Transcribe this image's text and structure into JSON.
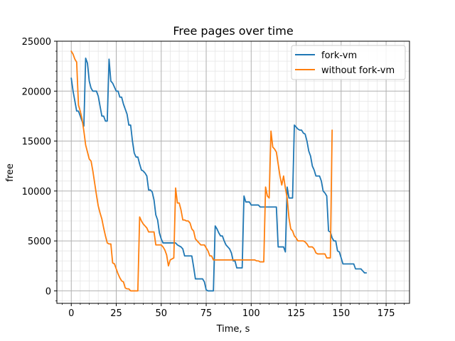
{
  "chart_data": {
    "type": "line",
    "title": "Free pages over time",
    "xlabel": "Time, s",
    "ylabel": "free",
    "xlim": [
      -8,
      188
    ],
    "ylim": [
      -1250,
      25000
    ],
    "x_ticks": [
      0,
      25,
      50,
      75,
      100,
      125,
      150,
      175
    ],
    "y_ticks": [
      0,
      5000,
      10000,
      15000,
      20000,
      25000
    ],
    "x_minor_step": 5,
    "y_minor_step": 1000,
    "grid": "major and minor",
    "legend_position": "top-right",
    "series": [
      {
        "name": "fork-vm",
        "color": "#1f77b4",
        "points": [
          [
            0,
            21300
          ],
          [
            1,
            20000
          ],
          [
            2,
            19000
          ],
          [
            3,
            18000
          ],
          [
            4,
            18000
          ],
          [
            5,
            17500
          ],
          [
            6,
            17000
          ],
          [
            7,
            16500
          ],
          [
            8,
            23300
          ],
          [
            9,
            22800
          ],
          [
            10,
            21000
          ],
          [
            11,
            20300
          ],
          [
            12,
            20000
          ],
          [
            13,
            20000
          ],
          [
            14,
            20000
          ],
          [
            15,
            19500
          ],
          [
            16,
            18500
          ],
          [
            17,
            17500
          ],
          [
            18,
            17500
          ],
          [
            19,
            17000
          ],
          [
            20,
            17000
          ],
          [
            21,
            23200
          ],
          [
            22,
            21000
          ],
          [
            23,
            20800
          ],
          [
            24,
            20400
          ],
          [
            25,
            20000
          ],
          [
            26,
            20000
          ],
          [
            27,
            19400
          ],
          [
            28,
            19400
          ],
          [
            29,
            18700
          ],
          [
            30,
            18200
          ],
          [
            31,
            17700
          ],
          [
            32,
            16600
          ],
          [
            33,
            16600
          ],
          [
            34,
            15000
          ],
          [
            35,
            13800
          ],
          [
            36,
            13400
          ],
          [
            37,
            13400
          ],
          [
            38,
            12700
          ],
          [
            39,
            12100
          ],
          [
            40,
            12000
          ],
          [
            41,
            11800
          ],
          [
            42,
            11500
          ],
          [
            43,
            10100
          ],
          [
            44,
            10100
          ],
          [
            45,
            9900
          ],
          [
            46,
            9100
          ],
          [
            47,
            7600
          ],
          [
            48,
            7100
          ],
          [
            49,
            5800
          ],
          [
            50,
            5200
          ],
          [
            51,
            4800
          ],
          [
            52,
            4800
          ],
          [
            53,
            4800
          ],
          [
            54,
            4800
          ],
          [
            55,
            4800
          ],
          [
            56,
            4800
          ],
          [
            57,
            4800
          ],
          [
            58,
            4800
          ],
          [
            59,
            4600
          ],
          [
            60,
            4500
          ],
          [
            61,
            4400
          ],
          [
            62,
            4200
          ],
          [
            63,
            3500
          ],
          [
            64,
            3500
          ],
          [
            65,
            3500
          ],
          [
            66,
            3500
          ],
          [
            67,
            3500
          ],
          [
            68,
            2400
          ],
          [
            69,
            1200
          ],
          [
            70,
            1200
          ],
          [
            71,
            1200
          ],
          [
            72,
            1200
          ],
          [
            73,
            1200
          ],
          [
            74,
            900
          ],
          [
            75,
            100
          ],
          [
            76,
            0
          ],
          [
            77,
            0
          ],
          [
            78,
            0
          ],
          [
            79,
            0
          ],
          [
            80,
            6500
          ],
          [
            81,
            6200
          ],
          [
            82,
            5800
          ],
          [
            83,
            5500
          ],
          [
            84,
            5500
          ],
          [
            85,
            5000
          ],
          [
            86,
            4600
          ],
          [
            87,
            4400
          ],
          [
            88,
            4200
          ],
          [
            89,
            3800
          ],
          [
            90,
            3000
          ],
          [
            91,
            3000
          ],
          [
            92,
            2300
          ],
          [
            93,
            2300
          ],
          [
            94,
            2300
          ],
          [
            95,
            2300
          ],
          [
            96,
            9500
          ],
          [
            97,
            8900
          ],
          [
            98,
            8900
          ],
          [
            99,
            8900
          ],
          [
            100,
            8600
          ],
          [
            101,
            8600
          ],
          [
            102,
            8600
          ],
          [
            103,
            8600
          ],
          [
            104,
            8600
          ],
          [
            105,
            8400
          ],
          [
            106,
            8400
          ],
          [
            107,
            8400
          ],
          [
            108,
            8400
          ],
          [
            109,
            8400
          ],
          [
            110,
            8400
          ],
          [
            111,
            8400
          ],
          [
            112,
            8400
          ],
          [
            113,
            8400
          ],
          [
            114,
            8400
          ],
          [
            115,
            4400
          ],
          [
            116,
            4400
          ],
          [
            117,
            4400
          ],
          [
            118,
            4400
          ],
          [
            119,
            3900
          ],
          [
            120,
            10400
          ],
          [
            121,
            9300
          ],
          [
            122,
            9300
          ],
          [
            123,
            9300
          ],
          [
            124,
            16600
          ],
          [
            125,
            16400
          ],
          [
            126,
            16200
          ],
          [
            127,
            16100
          ],
          [
            128,
            16100
          ],
          [
            129,
            15800
          ],
          [
            130,
            15700
          ],
          [
            131,
            15000
          ],
          [
            132,
            14000
          ],
          [
            133,
            13500
          ],
          [
            134,
            12500
          ],
          [
            135,
            12100
          ],
          [
            136,
            11500
          ],
          [
            137,
            11500
          ],
          [
            138,
            11500
          ],
          [
            139,
            11000
          ],
          [
            140,
            10000
          ],
          [
            141,
            9800
          ],
          [
            142,
            9500
          ],
          [
            143,
            6000
          ],
          [
            144,
            5900
          ],
          [
            145,
            5300
          ],
          [
            146,
            5000
          ],
          [
            147,
            5000
          ],
          [
            148,
            4000
          ],
          [
            149,
            3900
          ],
          [
            150,
            3300
          ],
          [
            151,
            2700
          ],
          [
            152,
            2700
          ],
          [
            153,
            2700
          ],
          [
            154,
            2700
          ],
          [
            155,
            2700
          ],
          [
            156,
            2700
          ],
          [
            157,
            2700
          ],
          [
            158,
            2200
          ],
          [
            159,
            2200
          ],
          [
            160,
            2200
          ],
          [
            161,
            2200
          ],
          [
            162,
            2000
          ],
          [
            163,
            1800
          ],
          [
            164,
            1800
          ]
        ]
      },
      {
        "name": "without fork-vm",
        "color": "#ff7f0e",
        "points": [
          [
            0,
            24000
          ],
          [
            1,
            23700
          ],
          [
            2,
            23200
          ],
          [
            3,
            22900
          ],
          [
            4,
            18600
          ],
          [
            5,
            18000
          ],
          [
            6,
            17200
          ],
          [
            7,
            16000
          ],
          [
            8,
            14600
          ],
          [
            9,
            13900
          ],
          [
            10,
            13200
          ],
          [
            11,
            13000
          ],
          [
            12,
            12000
          ],
          [
            13,
            10800
          ],
          [
            14,
            9600
          ],
          [
            15,
            8500
          ],
          [
            16,
            7800
          ],
          [
            17,
            7200
          ],
          [
            18,
            6300
          ],
          [
            19,
            5500
          ],
          [
            20,
            4800
          ],
          [
            21,
            4700
          ],
          [
            22,
            4700
          ],
          [
            23,
            2800
          ],
          [
            24,
            2700
          ],
          [
            25,
            2200
          ],
          [
            26,
            1700
          ],
          [
            27,
            1300
          ],
          [
            28,
            1000
          ],
          [
            29,
            900
          ],
          [
            30,
            300
          ],
          [
            31,
            200
          ],
          [
            32,
            200
          ],
          [
            33,
            0
          ],
          [
            34,
            0
          ],
          [
            35,
            0
          ],
          [
            36,
            0
          ],
          [
            37,
            0
          ],
          [
            38,
            7400
          ],
          [
            39,
            7000
          ],
          [
            40,
            6700
          ],
          [
            41,
            6500
          ],
          [
            42,
            6300
          ],
          [
            43,
            5900
          ],
          [
            44,
            5900
          ],
          [
            45,
            5900
          ],
          [
            46,
            5900
          ],
          [
            47,
            4600
          ],
          [
            48,
            4600
          ],
          [
            49,
            4600
          ],
          [
            50,
            4600
          ],
          [
            51,
            4400
          ],
          [
            52,
            4100
          ],
          [
            53,
            3600
          ],
          [
            54,
            2500
          ],
          [
            55,
            3100
          ],
          [
            56,
            3200
          ],
          [
            57,
            3300
          ],
          [
            58,
            10300
          ],
          [
            59,
            8800
          ],
          [
            60,
            8800
          ],
          [
            61,
            8100
          ],
          [
            62,
            7100
          ],
          [
            63,
            7100
          ],
          [
            64,
            7000
          ],
          [
            65,
            7000
          ],
          [
            66,
            6800
          ],
          [
            67,
            6200
          ],
          [
            68,
            6000
          ],
          [
            69,
            5200
          ],
          [
            70,
            5000
          ],
          [
            71,
            4800
          ],
          [
            72,
            4600
          ],
          [
            73,
            4600
          ],
          [
            74,
            4600
          ],
          [
            75,
            4300
          ],
          [
            76,
            4000
          ],
          [
            77,
            3500
          ],
          [
            78,
            3500
          ],
          [
            79,
            3100
          ],
          [
            80,
            3100
          ],
          [
            81,
            3100
          ],
          [
            82,
            3100
          ],
          [
            83,
            3100
          ],
          [
            84,
            3100
          ],
          [
            85,
            3100
          ],
          [
            86,
            3100
          ],
          [
            87,
            3100
          ],
          [
            88,
            3100
          ],
          [
            89,
            3100
          ],
          [
            90,
            3100
          ],
          [
            91,
            3100
          ],
          [
            92,
            3100
          ],
          [
            93,
            3100
          ],
          [
            94,
            3100
          ],
          [
            95,
            3100
          ],
          [
            96,
            3100
          ],
          [
            97,
            3100
          ],
          [
            98,
            3100
          ],
          [
            99,
            3100
          ],
          [
            100,
            3100
          ],
          [
            101,
            3100
          ],
          [
            102,
            3100
          ],
          [
            103,
            3000
          ],
          [
            104,
            3000
          ],
          [
            105,
            2900
          ],
          [
            106,
            2900
          ],
          [
            107,
            2900
          ],
          [
            108,
            10400
          ],
          [
            109,
            9500
          ],
          [
            110,
            9300
          ],
          [
            111,
            16000
          ],
          [
            112,
            14400
          ],
          [
            113,
            14200
          ],
          [
            114,
            13900
          ],
          [
            115,
            12700
          ],
          [
            116,
            11500
          ],
          [
            117,
            10600
          ],
          [
            118,
            11500
          ],
          [
            119,
            10300
          ],
          [
            120,
            9300
          ],
          [
            121,
            7300
          ],
          [
            122,
            6200
          ],
          [
            123,
            6000
          ],
          [
            124,
            5500
          ],
          [
            125,
            5300
          ],
          [
            126,
            5000
          ],
          [
            127,
            5000
          ],
          [
            128,
            5000
          ],
          [
            129,
            5000
          ],
          [
            130,
            4900
          ],
          [
            131,
            4700
          ],
          [
            132,
            4400
          ],
          [
            133,
            4400
          ],
          [
            134,
            4400
          ],
          [
            135,
            4200
          ],
          [
            136,
            3800
          ],
          [
            137,
            3700
          ],
          [
            138,
            3700
          ],
          [
            139,
            3700
          ],
          [
            140,
            3700
          ],
          [
            141,
            3700
          ],
          [
            142,
            3300
          ],
          [
            143,
            3300
          ],
          [
            144,
            3300
          ],
          [
            145,
            16100
          ]
        ]
      }
    ]
  }
}
